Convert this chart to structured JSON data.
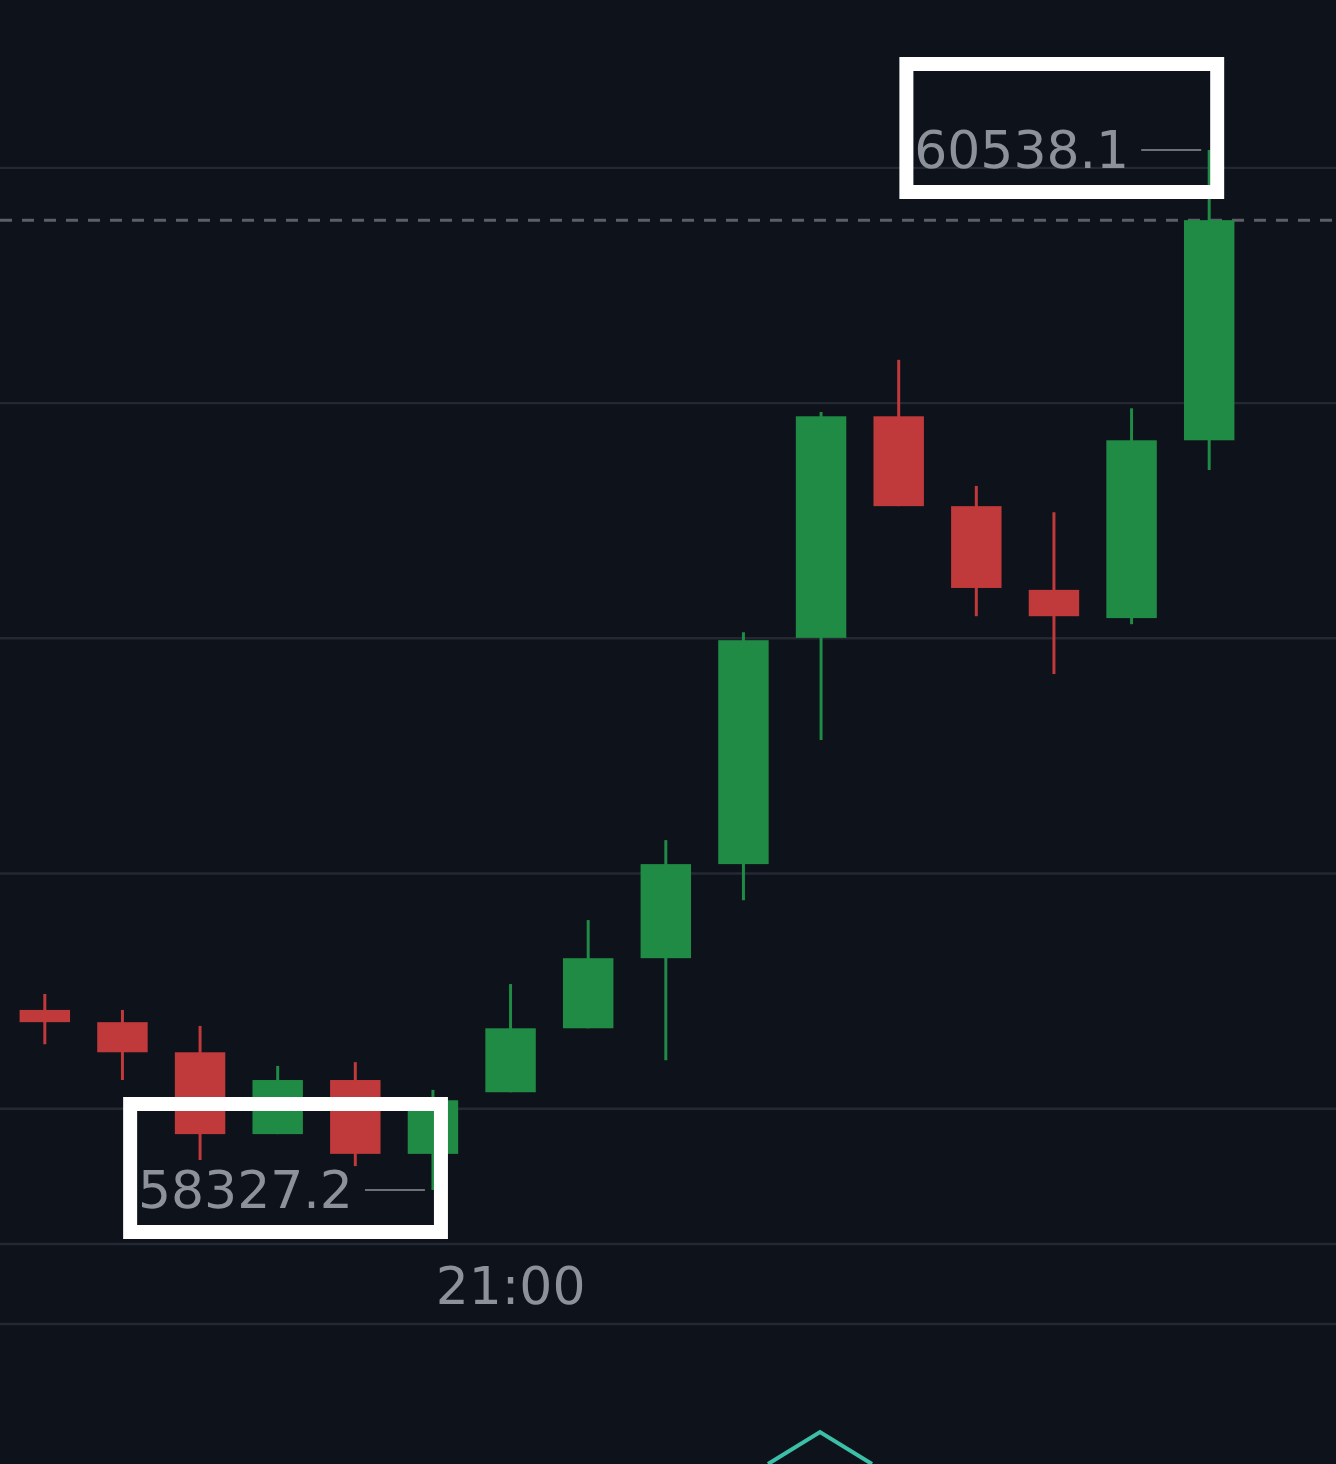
{
  "chart_data": {
    "type": "candlestick",
    "categories": [
      null,
      null,
      null,
      null,
      null,
      null,
      "21:00",
      null,
      null,
      null,
      null,
      null,
      null,
      null,
      null,
      null
    ],
    "ohlc": [
      [
        58710,
        58744,
        58637,
        58684
      ],
      [
        58684,
        58710,
        58561,
        58620
      ],
      [
        58620,
        58676,
        58391,
        58446
      ],
      [
        58446,
        58591,
        58446,
        58561
      ],
      [
        58561,
        58599,
        58378,
        58404
      ],
      [
        58404,
        58540,
        58327.2,
        58518
      ],
      [
        58535,
        58765,
        58535,
        58671
      ],
      [
        58671,
        58901,
        58671,
        58820
      ],
      [
        58820,
        59071,
        58603,
        59020
      ],
      [
        59020,
        59513,
        58943,
        59496
      ],
      [
        59501,
        59981,
        59284,
        59972
      ],
      [
        59972,
        60092,
        59781,
        59781
      ],
      [
        59781,
        59824,
        59547,
        59607
      ],
      [
        59603,
        59768,
        59424,
        59547
      ],
      [
        59543,
        59989,
        59530,
        59921
      ],
      [
        59921,
        60538.1,
        59858,
        60389
      ]
    ],
    "colors": [
      "#c0393b",
      "#c0393b",
      "#c0393b",
      "#1f8b45",
      "#c0393b",
      "#1f8b45",
      "#1f8b45",
      "#1f8b45",
      "#1f8b45",
      "#1f8b45",
      "#1f8b45",
      "#c0393b",
      "#c0393b",
      "#c0393b",
      "#1f8b45",
      "#1f8b45"
    ],
    "yticks": [
      {
        "value": 58500,
        "label": null
      },
      {
        "value": 59000,
        "label": null
      },
      {
        "value": 59500,
        "label": null
      },
      {
        "value": 60000,
        "label": null
      },
      {
        "value": 60500,
        "label": null
      }
    ],
    "grid": true,
    "ref_lines": [
      {
        "axis": "y",
        "value": 60389,
        "line_style": "dashed",
        "color": "#5a5f68"
      }
    ],
    "annotations": [
      "60538.1",
      "58327.2"
    ]
  }
}
